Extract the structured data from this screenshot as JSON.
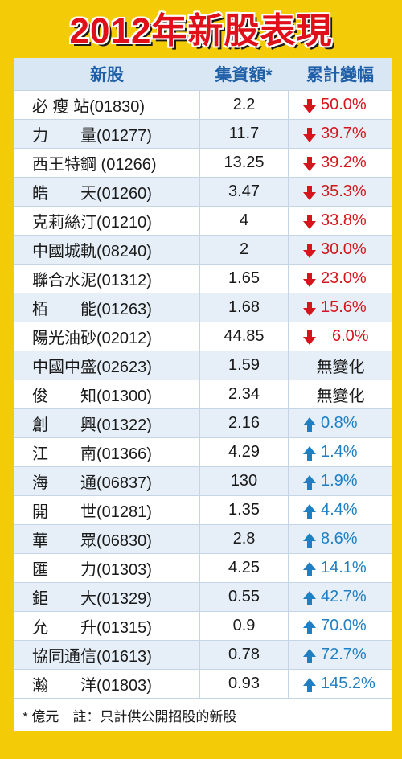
{
  "title": "2012年新股表現",
  "chart_data": {
    "type": "table",
    "columns": [
      "新股",
      "集資額*",
      "累計變幅"
    ],
    "rows": [
      {
        "name": "必 瘦 站(01830)",
        "amount": "2.2",
        "change": "50.0%",
        "direction": "down"
      },
      {
        "name": "力　　量(01277)",
        "amount": "11.7",
        "change": "39.7%",
        "direction": "down"
      },
      {
        "name": "西王特鋼 (01266)",
        "amount": "13.25",
        "change": "39.2%",
        "direction": "down"
      },
      {
        "name": "皓　　天(01260)",
        "amount": "3.47",
        "change": "35.3%",
        "direction": "down"
      },
      {
        "name": "克莉絲汀(01210)",
        "amount": "4",
        "change": "33.8%",
        "direction": "down"
      },
      {
        "name": "中國城軌(08240)",
        "amount": "2",
        "change": "30.0%",
        "direction": "down"
      },
      {
        "name": "聯合水泥(01312)",
        "amount": "1.65",
        "change": "23.0%",
        "direction": "down"
      },
      {
        "name": "栢　　能(01263)",
        "amount": "1.68",
        "change": "15.6%",
        "direction": "down"
      },
      {
        "name": "陽光油砂(02012)",
        "amount": "44.85",
        "change": "6.0%",
        "direction": "down"
      },
      {
        "name": "中國中盛(02623)",
        "amount": "1.59",
        "change": "無變化",
        "direction": "none"
      },
      {
        "name": "俊　　知(01300)",
        "amount": "2.34",
        "change": "無變化",
        "direction": "none"
      },
      {
        "name": "創　　興(01322)",
        "amount": "2.16",
        "change": "0.8%",
        "direction": "up"
      },
      {
        "name": "江　　南(01366)",
        "amount": "4.29",
        "change": "1.4%",
        "direction": "up"
      },
      {
        "name": "海　　通(06837)",
        "amount": "130",
        "change": "1.9%",
        "direction": "up"
      },
      {
        "name": "開　　世(01281)",
        "amount": "1.35",
        "change": "4.4%",
        "direction": "up"
      },
      {
        "name": "華　　眾(06830)",
        "amount": "2.8",
        "change": "8.6%",
        "direction": "up"
      },
      {
        "name": "匯　　力(01303)",
        "amount": "4.25",
        "change": "14.1%",
        "direction": "up"
      },
      {
        "name": "鉅　　大(01329)",
        "amount": "0.55",
        "change": "42.7%",
        "direction": "up"
      },
      {
        "name": "允　　升(01315)",
        "amount": "0.9",
        "change": "70.0%",
        "direction": "up"
      },
      {
        "name": "協同通信(01613)",
        "amount": "0.78",
        "change": "72.7%",
        "direction": "up"
      },
      {
        "name": "瀚　　洋(01803)",
        "amount": "0.93",
        "change": "145.2%",
        "direction": "up"
      }
    ],
    "footnote": "* 億元　註：只計供公開招股的新股"
  },
  "colors": {
    "background": "#f3cb07",
    "title": "#e0101a",
    "header": "#1f5fa8",
    "down": "#d4161c",
    "up": "#1f7fc2"
  }
}
